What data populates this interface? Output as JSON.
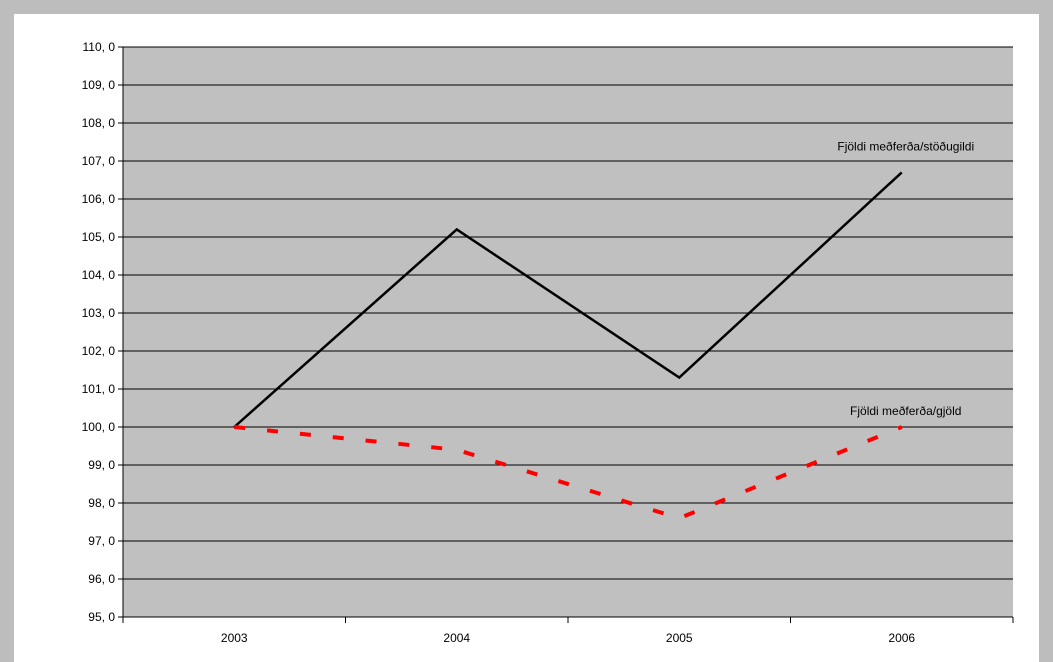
{
  "chart_data": {
    "type": "line",
    "categories": [
      "2003",
      "2004",
      "2005",
      "2006"
    ],
    "series": [
      {
        "name": "Fjöldi meðferða/stöðugildi",
        "values": [
          100.0,
          105.2,
          101.3,
          106.7
        ],
        "color": "#000000",
        "style": "solid"
      },
      {
        "name": "Fjöldi meðferða/gjöld",
        "values": [
          100.0,
          99.4,
          97.6,
          100.0
        ],
        "color": "#ff0000",
        "style": "dashed"
      }
    ],
    "ylim": [
      95.0,
      110.0
    ],
    "ytick_step": 1.0,
    "yticks": [
      "95, 0",
      "96, 0",
      "97, 0",
      "98, 0",
      "99, 0",
      "100, 0",
      "101, 0",
      "102, 0",
      "103, 0",
      "104, 0",
      "105, 0",
      "106, 0",
      "107, 0",
      "108, 0",
      "109, 0",
      "110, 0"
    ],
    "grid": true,
    "plot_background": "#c0c0c0",
    "title": "",
    "xlabel": "",
    "ylabel": ""
  }
}
